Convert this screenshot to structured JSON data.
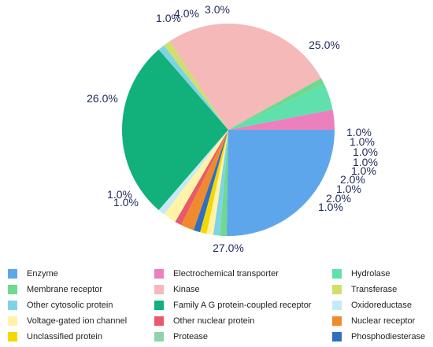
{
  "chart_data": {
    "type": "pie",
    "title": "",
    "slices": [
      {
        "label": "Enzyme",
        "value": 25.0,
        "display": "25.0%",
        "color": "#5ea6ec"
      },
      {
        "label": "Membrane receptor",
        "value": 1.0,
        "display": "1.0%",
        "color": "#6fd98e"
      },
      {
        "label": "Other cytosolic protein",
        "value": 1.0,
        "display": "1.0%",
        "color": "#7fd3e6"
      },
      {
        "label": "Voltage-gated ion channel",
        "value": 1.0,
        "display": "1.0%",
        "color": "#fff3a8"
      },
      {
        "label": "Unclassified protein",
        "value": 1.0,
        "display": "1.0%",
        "color": "#f5d800"
      },
      {
        "label": "Phosphodiesterase",
        "value": 1.0,
        "display": "1.0%",
        "color": "#2f6fc0"
      },
      {
        "label": "Nuclear receptor",
        "value": 2.0,
        "display": "2.0%",
        "color": "#ef8a2e"
      },
      {
        "label": "Other nuclear protein",
        "value": 1.0,
        "display": "1.0%",
        "color": "#e85a6a"
      },
      {
        "label": "Voltage-gated ion channel",
        "value": 2.0,
        "display": "2.0%",
        "color": "#fff3a8"
      },
      {
        "label": "Oxidoreductase",
        "value": 1.0,
        "display": "1.0%",
        "color": "#c5eaf5"
      },
      {
        "label": "Family A G protein-coupled receptor",
        "value": 27.0,
        "display": "27.0%",
        "color": "#12b07a"
      },
      {
        "label": "Other cytosolic protein",
        "value": 1.0,
        "display": "1.0%",
        "color": "#7fd3e6"
      },
      {
        "label": "Transferase",
        "value": 1.0,
        "display": "1.0%",
        "color": "#cfe06a"
      },
      {
        "label": "Kinase",
        "value": 26.0,
        "display": "26.0%",
        "color": "#f4b9b8"
      },
      {
        "label": "Membrane receptor",
        "value": 1.0,
        "display": "1.0%",
        "color": "#6fd98e"
      },
      {
        "label": "Hydrolase",
        "value": 4.0,
        "display": "4.0%",
        "color": "#5fe0ad"
      },
      {
        "label": "Electrochemical transporter",
        "value": 3.0,
        "display": "3.0%",
        "color": "#ec7fbe"
      }
    ],
    "legend": [
      {
        "label": "Enzyme",
        "color": "#5ea6ec"
      },
      {
        "label": "Electrochemical transporter",
        "color": "#ec7fbe"
      },
      {
        "label": "Hydrolase",
        "color": "#5fe0ad"
      },
      {
        "label": "Membrane receptor",
        "color": "#6fd98e"
      },
      {
        "label": "Kinase",
        "color": "#f4b9b8"
      },
      {
        "label": "Transferase",
        "color": "#cfe06a"
      },
      {
        "label": "Other cytosolic protein",
        "color": "#7fd3e6"
      },
      {
        "label": "Family A G protein-coupled receptor",
        "color": "#12b07a"
      },
      {
        "label": "Oxidoreductase",
        "color": "#c5eaf5"
      },
      {
        "label": "Voltage-gated ion channel",
        "color": "#fff3a8"
      },
      {
        "label": "Other nuclear protein",
        "color": "#e85a6a"
      },
      {
        "label": "Nuclear receptor",
        "color": "#ef8a2e"
      },
      {
        "label": "Unclassified protein",
        "color": "#f5d800"
      },
      {
        "label": "Protease",
        "color": "#8fd3a8"
      },
      {
        "label": "Phosphodiesterase",
        "color": "#2f6fc0"
      }
    ],
    "legend_placement": "bottom"
  }
}
